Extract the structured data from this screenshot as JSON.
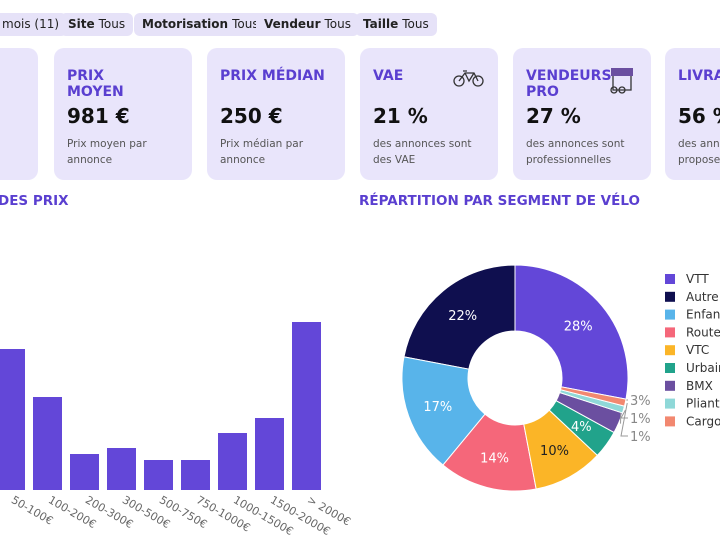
{
  "filters": [
    {
      "label": "mois (11)"
    },
    {
      "label": "Site",
      "value": "Tous"
    },
    {
      "label": "Motorisation",
      "value": "Tous"
    },
    {
      "label": "Vendeur",
      "value": "Tous"
    },
    {
      "label": "Taille",
      "value": "Tous"
    }
  ],
  "cards": [
    {
      "title": "PRIX MOYEN",
      "value": "981 €",
      "desc": "Prix moyen par annonce"
    },
    {
      "title": "PRIX MÉDIAN",
      "value": "250 €",
      "desc": "Prix médian par annonce"
    },
    {
      "title": "VAE",
      "value": "21 %",
      "desc": "des annonces sont des VAE"
    },
    {
      "title": "VENDEURS PRO",
      "value": "27 %",
      "desc": "des annonces sont professionnelles"
    },
    {
      "title": "LIVRA",
      "value": "56 %",
      "desc": "des annonces sont proposer"
    }
  ],
  "chart_data": [
    {
      "type": "bar",
      "title": "DES PRIX",
      "categories": [
        "50-100€",
        "100-200€",
        "200-300€",
        "300-500€",
        "500-750€",
        "750-1000€",
        "1000-1500€",
        "1500-2000€",
        "> 2000€"
      ],
      "values": [
        4.7,
        3.1,
        1.2,
        1.4,
        1.0,
        1.0,
        1.9,
        2.4,
        5.6
      ],
      "color": "#6347d8",
      "ylim": [
        0,
        6
      ]
    },
    {
      "type": "pie",
      "title": "RÉPARTITION PAR SEGMENT DE VÉLO",
      "categories": [
        "VTT",
        "Autre",
        "Enfant",
        "Route",
        "VTC",
        "Urbain",
        "BMX",
        "Pliant",
        "Cargo"
      ],
      "values": [
        28,
        22,
        17,
        14,
        10,
        4,
        3,
        1,
        1
      ],
      "value_labels": [
        "28%",
        "22%",
        "17%",
        "14%",
        "10%",
        "4%",
        "3%",
        "1%",
        "1%"
      ],
      "colors": [
        "#6347d8",
        "#0f0f4f",
        "#58b4ea",
        "#f5677a",
        "#fbb527",
        "#21a38b",
        "#6b4fa0",
        "#8fd8d8",
        "#f28870"
      ]
    }
  ]
}
